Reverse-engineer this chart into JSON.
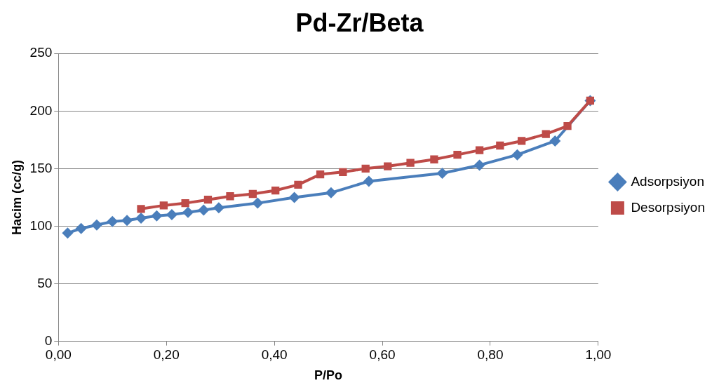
{
  "chart_data": {
    "type": "line",
    "title": "Pd-Zr/Beta",
    "xlabel": "P/Po",
    "ylabel": "Hacim (cc/g)",
    "xlim": [
      0,
      1
    ],
    "xticks": [
      {
        "value": 0,
        "label": "0,00"
      },
      {
        "value": 0.2,
        "label": "0,20"
      },
      {
        "value": 0.4,
        "label": "0,40"
      },
      {
        "value": 0.6,
        "label": "0,60"
      },
      {
        "value": 0.8,
        "label": "0,80"
      },
      {
        "value": 1,
        "label": "1,00"
      }
    ],
    "ylim": [
      0,
      250
    ],
    "yticks": [
      0,
      50,
      100,
      150,
      200,
      250
    ],
    "grid": "y",
    "legend": "right",
    "series": [
      {
        "name": "Adsorpsiyon",
        "color": "#4a7ebb",
        "marker": "diamond",
        "x": [
          0.017,
          0.042,
          0.071,
          0.1,
          0.127,
          0.153,
          0.182,
          0.21,
          0.24,
          0.269,
          0.297,
          0.369,
          0.437,
          0.505,
          0.575,
          0.711,
          0.78,
          0.85,
          0.92,
          0.985
        ],
        "values": [
          94,
          98,
          101,
          104,
          105,
          107,
          109,
          110,
          112,
          114,
          116,
          120,
          125,
          129,
          139,
          146,
          153,
          162,
          174,
          209
        ]
      },
      {
        "name": "Desorpsiyon",
        "color": "#be4b48",
        "marker": "square",
        "x": [
          0.153,
          0.195,
          0.235,
          0.277,
          0.318,
          0.36,
          0.402,
          0.444,
          0.485,
          0.527,
          0.569,
          0.61,
          0.652,
          0.696,
          0.739,
          0.78,
          0.818,
          0.858,
          0.903,
          0.943,
          0.985
        ],
        "values": [
          115,
          118,
          120,
          123,
          126,
          128,
          131,
          136,
          145,
          147,
          150,
          152,
          155,
          158,
          162,
          166,
          170,
          174,
          180,
          187,
          209
        ]
      }
    ]
  }
}
